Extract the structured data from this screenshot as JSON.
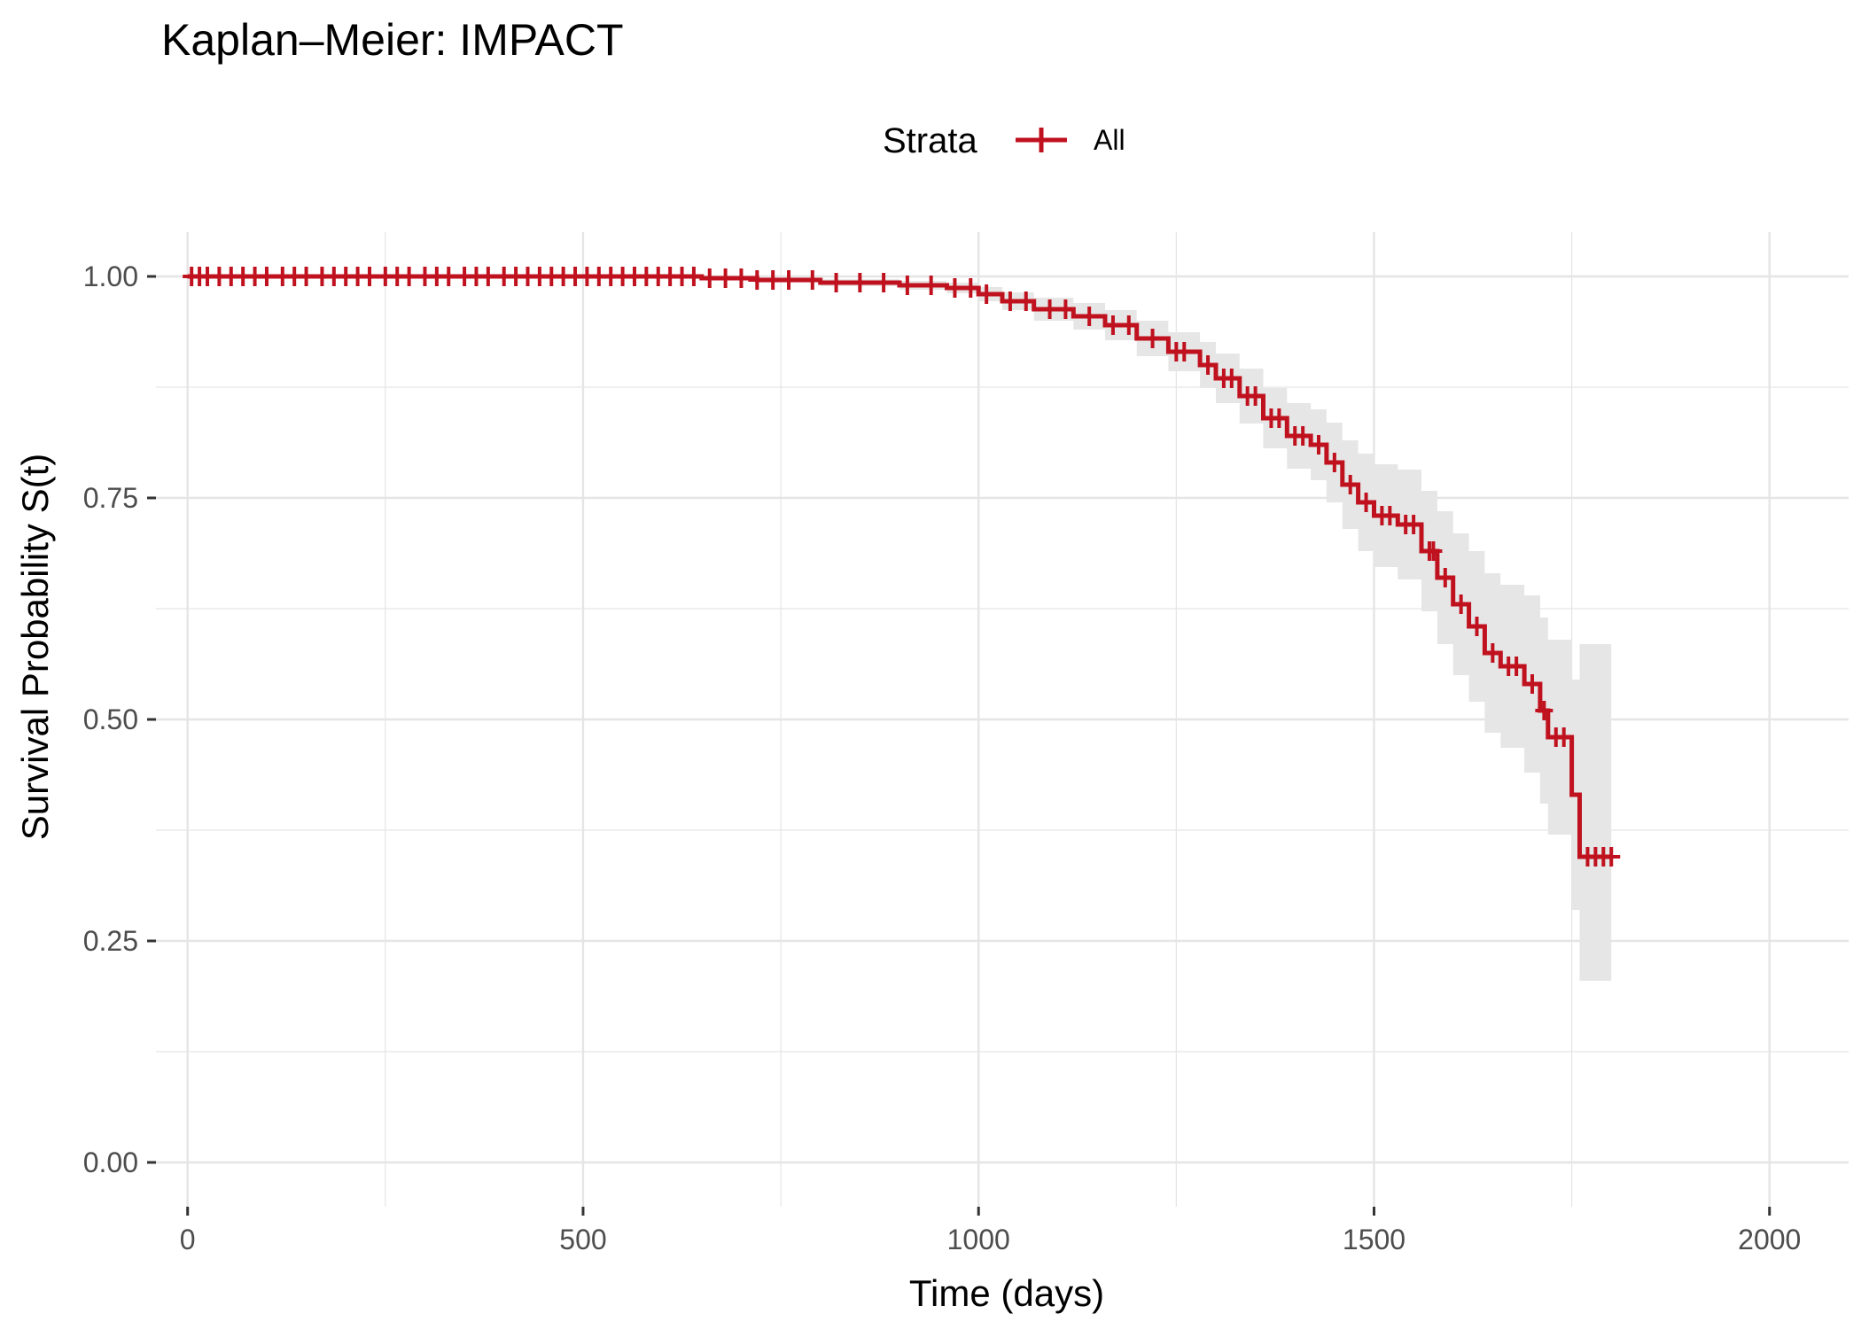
{
  "chart_data": {
    "type": "line",
    "title": "Kaplan–Meier: IMPACT",
    "xlabel": "Time (days)",
    "ylabel": "Survival Probability S(t)",
    "xlim": [
      -40,
      2100
    ],
    "ylim": [
      -0.05,
      1.05
    ],
    "x_ticks": [
      0,
      500,
      1000,
      1500,
      2000
    ],
    "x_tick_labels": [
      "0",
      "500",
      "1000",
      "1500",
      "2000"
    ],
    "y_ticks": [
      0,
      0.25,
      0.5,
      0.75,
      1.0
    ],
    "y_tick_labels": [
      "0.00",
      "0.25",
      "0.50",
      "0.75",
      "1.00"
    ],
    "grid": true,
    "legend": {
      "title": "Strata",
      "position": "top"
    },
    "colors": {
      "line": "#C0111F",
      "ci": "#E6E6E6",
      "grid": "#E5E5E5"
    },
    "series": [
      {
        "name": "All",
        "step": true,
        "x": [
          0,
          650,
          720,
          800,
          900,
          960,
          1000,
          1030,
          1070,
          1120,
          1160,
          1200,
          1240,
          1280,
          1300,
          1330,
          1360,
          1390,
          1420,
          1440,
          1460,
          1480,
          1500,
          1530,
          1560,
          1580,
          1600,
          1620,
          1640,
          1660,
          1690,
          1710,
          1720,
          1750,
          1760,
          1800
        ],
        "y": [
          1.0,
          0.998,
          0.996,
          0.993,
          0.99,
          0.987,
          0.98,
          0.972,
          0.963,
          0.955,
          0.945,
          0.93,
          0.915,
          0.9,
          0.885,
          0.865,
          0.84,
          0.82,
          0.81,
          0.79,
          0.765,
          0.745,
          0.73,
          0.72,
          0.69,
          0.66,
          0.63,
          0.605,
          0.575,
          0.56,
          0.54,
          0.51,
          0.48,
          0.415,
          0.345,
          0.345
        ],
        "ci_lower": [
          1.0,
          0.996,
          0.993,
          0.989,
          0.985,
          0.981,
          0.972,
          0.962,
          0.95,
          0.94,
          0.928,
          0.91,
          0.893,
          0.874,
          0.857,
          0.834,
          0.806,
          0.783,
          0.77,
          0.745,
          0.715,
          0.69,
          0.672,
          0.658,
          0.622,
          0.585,
          0.55,
          0.52,
          0.485,
          0.468,
          0.44,
          0.405,
          0.37,
          0.285,
          0.205,
          0.205
        ],
        "ci_upper": [
          1.0,
          1.0,
          0.999,
          0.997,
          0.995,
          0.993,
          0.988,
          0.982,
          0.976,
          0.97,
          0.962,
          0.95,
          0.937,
          0.926,
          0.913,
          0.896,
          0.874,
          0.857,
          0.85,
          0.835,
          0.815,
          0.8,
          0.788,
          0.782,
          0.758,
          0.735,
          0.71,
          0.69,
          0.665,
          0.652,
          0.64,
          0.615,
          0.59,
          0.545,
          0.585,
          0.585
        ],
        "censor_times": [
          5,
          15,
          25,
          40,
          55,
          70,
          85,
          100,
          120,
          135,
          150,
          170,
          185,
          200,
          215,
          230,
          250,
          265,
          280,
          300,
          315,
          330,
          350,
          365,
          380,
          400,
          415,
          430,
          445,
          460,
          475,
          490,
          505,
          520,
          535,
          550,
          565,
          580,
          595,
          610,
          625,
          640,
          660,
          680,
          700,
          720,
          740,
          760,
          790,
          820,
          850,
          880,
          910,
          940,
          970,
          990,
          1010,
          1040,
          1060,
          1090,
          1110,
          1140,
          1170,
          1190,
          1220,
          1250,
          1260,
          1290,
          1310,
          1320,
          1340,
          1350,
          1370,
          1380,
          1400,
          1410,
          1430,
          1450,
          1470,
          1490,
          1510,
          1520,
          1540,
          1550,
          1570,
          1575,
          1590,
          1610,
          1630,
          1650,
          1670,
          1680,
          1700,
          1715,
          1730,
          1740,
          1770,
          1780,
          1790,
          1800
        ]
      }
    ]
  }
}
